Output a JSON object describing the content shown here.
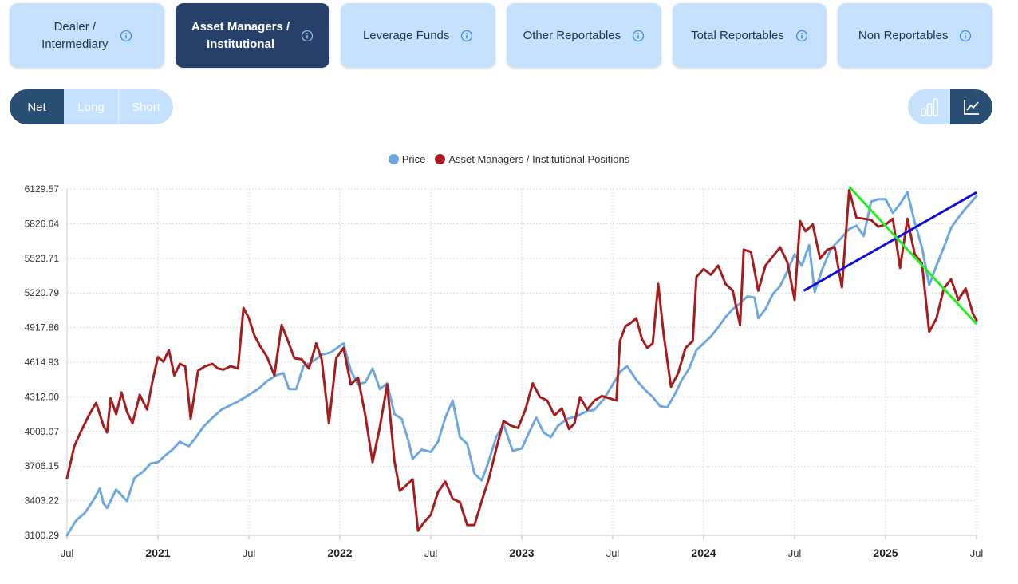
{
  "tabs": [
    {
      "label": "Dealer /\nIntermediary",
      "active": false
    },
    {
      "label": "Asset Managers /\nInstitutional",
      "active": true
    },
    {
      "label": "Leverage Funds",
      "active": false
    },
    {
      "label": "Other Reportables",
      "active": false
    },
    {
      "label": "Total Reportables",
      "active": false
    },
    {
      "label": "Non Reportables",
      "active": false
    }
  ],
  "position_toggle": {
    "net": "Net",
    "long": "Long",
    "short": "Short",
    "selected": "Net"
  },
  "chart_type_toggle": {
    "options": [
      "bar-chart-icon",
      "line-chart-icon"
    ],
    "selected": "line-chart-icon"
  },
  "colors": {
    "price": "#6fa8e0",
    "positions": "#a51d1d",
    "trend_up": "#1010d8",
    "trend_down": "#22ee22",
    "tab_bg": "#c5e1fd",
    "tab_active": "#26406a"
  },
  "chart_data": {
    "type": "line",
    "legend": [
      "Price",
      "Asset Managers / Institutional Positions"
    ],
    "y_ticks": [
      "6129.57",
      "5826.64",
      "5523.71",
      "5220.79",
      "4917.86",
      "4614.93",
      "4312.00",
      "4009.07",
      "3706.15",
      "3403.22",
      "3100.29"
    ],
    "ylim": [
      3100.29,
      6129.57
    ],
    "x_ticks": [
      {
        "label": "Jul",
        "x": 2020.5,
        "bold": false
      },
      {
        "label": "2021",
        "x": 2021.0,
        "bold": true
      },
      {
        "label": "Jul",
        "x": 2021.5,
        "bold": false
      },
      {
        "label": "2022",
        "x": 2022.0,
        "bold": true
      },
      {
        "label": "Jul",
        "x": 2022.5,
        "bold": false
      },
      {
        "label": "2023",
        "x": 2023.0,
        "bold": true
      },
      {
        "label": "Jul",
        "x": 2023.5,
        "bold": false
      },
      {
        "label": "2024",
        "x": 2024.0,
        "bold": true
      },
      {
        "label": "Jul",
        "x": 2024.5,
        "bold": false
      },
      {
        "label": "2025",
        "x": 2025.0,
        "bold": true
      },
      {
        "label": "Jul",
        "x": 2025.5,
        "bold": false
      }
    ],
    "xlim": [
      2020.5,
      2025.5
    ],
    "grid": true,
    "legend_position": "top-center",
    "series": [
      {
        "name": "Price",
        "points": [
          [
            2020.5,
            3100
          ],
          [
            2020.55,
            3230
          ],
          [
            2020.6,
            3300
          ],
          [
            2020.65,
            3420
          ],
          [
            2020.68,
            3510
          ],
          [
            2020.7,
            3380
          ],
          [
            2020.72,
            3340
          ],
          [
            2020.77,
            3500
          ],
          [
            2020.83,
            3400
          ],
          [
            2020.87,
            3600
          ],
          [
            2020.92,
            3660
          ],
          [
            2020.96,
            3730
          ],
          [
            2021.0,
            3740
          ],
          [
            2021.04,
            3800
          ],
          [
            2021.08,
            3850
          ],
          [
            2021.12,
            3920
          ],
          [
            2021.17,
            3880
          ],
          [
            2021.21,
            3960
          ],
          [
            2021.25,
            4050
          ],
          [
            2021.3,
            4130
          ],
          [
            2021.35,
            4200
          ],
          [
            2021.4,
            4240
          ],
          [
            2021.45,
            4280
          ],
          [
            2021.5,
            4330
          ],
          [
            2021.55,
            4380
          ],
          [
            2021.6,
            4450
          ],
          [
            2021.65,
            4500
          ],
          [
            2021.69,
            4520
          ],
          [
            2021.72,
            4380
          ],
          [
            2021.76,
            4380
          ],
          [
            2021.8,
            4580
          ],
          [
            2021.85,
            4620
          ],
          [
            2021.9,
            4680
          ],
          [
            2021.95,
            4700
          ],
          [
            2022.02,
            4780
          ],
          [
            2022.06,
            4540
          ],
          [
            2022.1,
            4420
          ],
          [
            2022.14,
            4440
          ],
          [
            2022.18,
            4560
          ],
          [
            2022.22,
            4380
          ],
          [
            2022.26,
            4430
          ],
          [
            2022.3,
            4160
          ],
          [
            2022.34,
            4120
          ],
          [
            2022.38,
            3910
          ],
          [
            2022.4,
            3770
          ],
          [
            2022.45,
            3850
          ],
          [
            2022.5,
            3830
          ],
          [
            2022.54,
            3920
          ],
          [
            2022.58,
            4130
          ],
          [
            2022.62,
            4280
          ],
          [
            2022.66,
            3960
          ],
          [
            2022.7,
            3900
          ],
          [
            2022.74,
            3640
          ],
          [
            2022.78,
            3580
          ],
          [
            2022.81,
            3710
          ],
          [
            2022.86,
            3960
          ],
          [
            2022.9,
            4070
          ],
          [
            2022.95,
            3840
          ],
          [
            2023.0,
            3860
          ],
          [
            2023.04,
            4000
          ],
          [
            2023.08,
            4130
          ],
          [
            2023.12,
            4000
          ],
          [
            2023.16,
            3960
          ],
          [
            2023.2,
            4060
          ],
          [
            2023.25,
            4120
          ],
          [
            2023.3,
            4140
          ],
          [
            2023.35,
            4180
          ],
          [
            2023.4,
            4200
          ],
          [
            2023.45,
            4290
          ],
          [
            2023.5,
            4420
          ],
          [
            2023.54,
            4530
          ],
          [
            2023.58,
            4580
          ],
          [
            2023.63,
            4460
          ],
          [
            2023.68,
            4370
          ],
          [
            2023.72,
            4310
          ],
          [
            2023.76,
            4230
          ],
          [
            2023.8,
            4220
          ],
          [
            2023.84,
            4330
          ],
          [
            2023.88,
            4460
          ],
          [
            2023.92,
            4560
          ],
          [
            2023.96,
            4720
          ],
          [
            2024.0,
            4780
          ],
          [
            2024.04,
            4840
          ],
          [
            2024.08,
            4920
          ],
          [
            2024.12,
            5010
          ],
          [
            2024.16,
            5080
          ],
          [
            2024.2,
            5130
          ],
          [
            2024.24,
            5190
          ],
          [
            2024.28,
            5180
          ],
          [
            2024.3,
            5000
          ],
          [
            2024.34,
            5080
          ],
          [
            2024.38,
            5210
          ],
          [
            2024.42,
            5280
          ],
          [
            2024.46,
            5410
          ],
          [
            2024.5,
            5560
          ],
          [
            2024.54,
            5460
          ],
          [
            2024.58,
            5640
          ],
          [
            2024.61,
            5230
          ],
          [
            2024.65,
            5420
          ],
          [
            2024.7,
            5610
          ],
          [
            2024.75,
            5690
          ],
          [
            2024.8,
            5780
          ],
          [
            2024.84,
            5810
          ],
          [
            2024.88,
            5720
          ],
          [
            2024.92,
            6020
          ],
          [
            2024.96,
            6040
          ],
          [
            2025.0,
            6040
          ],
          [
            2025.04,
            5920
          ],
          [
            2025.08,
            6000
          ],
          [
            2025.12,
            6100
          ],
          [
            2025.16,
            5840
          ],
          [
            2025.2,
            5620
          ],
          [
            2025.24,
            5290
          ],
          [
            2025.28,
            5460
          ],
          [
            2025.32,
            5620
          ],
          [
            2025.36,
            5790
          ],
          [
            2025.4,
            5880
          ],
          [
            2025.44,
            5960
          ],
          [
            2025.48,
            6030
          ],
          [
            2025.5,
            6070
          ]
        ]
      },
      {
        "name": "Asset Managers / Institutional Positions",
        "points": [
          [
            2020.5,
            3600
          ],
          [
            2020.54,
            3880
          ],
          [
            2020.58,
            4020
          ],
          [
            2020.62,
            4150
          ],
          [
            2020.66,
            4260
          ],
          [
            2020.7,
            4060
          ],
          [
            2020.72,
            4000
          ],
          [
            2020.74,
            4300
          ],
          [
            2020.77,
            4160
          ],
          [
            2020.8,
            4350
          ],
          [
            2020.83,
            4180
          ],
          [
            2020.86,
            4080
          ],
          [
            2020.9,
            4330
          ],
          [
            2020.94,
            4200
          ],
          [
            2020.97,
            4450
          ],
          [
            2021.0,
            4660
          ],
          [
            2021.03,
            4620
          ],
          [
            2021.06,
            4720
          ],
          [
            2021.09,
            4500
          ],
          [
            2021.12,
            4600
          ],
          [
            2021.15,
            4580
          ],
          [
            2021.18,
            4120
          ],
          [
            2021.22,
            4540
          ],
          [
            2021.26,
            4580
          ],
          [
            2021.3,
            4600
          ],
          [
            2021.33,
            4560
          ],
          [
            2021.36,
            4550
          ],
          [
            2021.4,
            4580
          ],
          [
            2021.44,
            4560
          ],
          [
            2021.47,
            5090
          ],
          [
            2021.5,
            5000
          ],
          [
            2021.53,
            4850
          ],
          [
            2021.56,
            4760
          ],
          [
            2021.6,
            4660
          ],
          [
            2021.64,
            4500
          ],
          [
            2021.68,
            4940
          ],
          [
            2021.71,
            4820
          ],
          [
            2021.75,
            4650
          ],
          [
            2021.79,
            4640
          ],
          [
            2021.83,
            4560
          ],
          [
            2021.87,
            4780
          ],
          [
            2021.9,
            4640
          ],
          [
            2021.94,
            4080
          ],
          [
            2021.98,
            4650
          ],
          [
            2022.02,
            4740
          ],
          [
            2022.06,
            4420
          ],
          [
            2022.1,
            4480
          ],
          [
            2022.14,
            4150
          ],
          [
            2022.18,
            3740
          ],
          [
            2022.22,
            4050
          ],
          [
            2022.26,
            4420
          ],
          [
            2022.3,
            3750
          ],
          [
            2022.33,
            3490
          ],
          [
            2022.36,
            3530
          ],
          [
            2022.4,
            3590
          ],
          [
            2022.43,
            3140
          ],
          [
            2022.46,
            3210
          ],
          [
            2022.5,
            3280
          ],
          [
            2022.54,
            3480
          ],
          [
            2022.58,
            3570
          ],
          [
            2022.62,
            3420
          ],
          [
            2022.66,
            3390
          ],
          [
            2022.7,
            3190
          ],
          [
            2022.74,
            3190
          ],
          [
            2022.78,
            3400
          ],
          [
            2022.82,
            3600
          ],
          [
            2022.86,
            3860
          ],
          [
            2022.9,
            4100
          ],
          [
            2022.94,
            4060
          ],
          [
            2022.98,
            4040
          ],
          [
            2023.02,
            4200
          ],
          [
            2023.06,
            4430
          ],
          [
            2023.1,
            4310
          ],
          [
            2023.14,
            4280
          ],
          [
            2023.18,
            4150
          ],
          [
            2023.22,
            4210
          ],
          [
            2023.26,
            4030
          ],
          [
            2023.29,
            4080
          ],
          [
            2023.32,
            4310
          ],
          [
            2023.36,
            4200
          ],
          [
            2023.4,
            4280
          ],
          [
            2023.44,
            4320
          ],
          [
            2023.48,
            4300
          ],
          [
            2023.52,
            4280
          ],
          [
            2023.54,
            4800
          ],
          [
            2023.57,
            4930
          ],
          [
            2023.6,
            4960
          ],
          [
            2023.63,
            5000
          ],
          [
            2023.66,
            4820
          ],
          [
            2023.69,
            4740
          ],
          [
            2023.72,
            4780
          ],
          [
            2023.75,
            5300
          ],
          [
            2023.78,
            4860
          ],
          [
            2023.82,
            4400
          ],
          [
            2023.86,
            4520
          ],
          [
            2023.9,
            4740
          ],
          [
            2023.94,
            4800
          ],
          [
            2023.96,
            5360
          ],
          [
            2024.0,
            5430
          ],
          [
            2024.04,
            5380
          ],
          [
            2024.08,
            5460
          ],
          [
            2024.12,
            5300
          ],
          [
            2024.16,
            5240
          ],
          [
            2024.2,
            4940
          ],
          [
            2024.22,
            5600
          ],
          [
            2024.26,
            5580
          ],
          [
            2024.3,
            5240
          ],
          [
            2024.34,
            5460
          ],
          [
            2024.38,
            5540
          ],
          [
            2024.42,
            5620
          ],
          [
            2024.46,
            5490
          ],
          [
            2024.5,
            5160
          ],
          [
            2024.53,
            5850
          ],
          [
            2024.56,
            5760
          ],
          [
            2024.6,
            5820
          ],
          [
            2024.64,
            5520
          ],
          [
            2024.68,
            5600
          ],
          [
            2024.72,
            5620
          ],
          [
            2024.76,
            5270
          ],
          [
            2024.8,
            6120
          ],
          [
            2024.84,
            5880
          ],
          [
            2024.88,
            5870
          ],
          [
            2024.92,
            5860
          ],
          [
            2024.96,
            5800
          ],
          [
            2025.0,
            5820
          ],
          [
            2025.04,
            5870
          ],
          [
            2025.08,
            5440
          ],
          [
            2025.12,
            5870
          ],
          [
            2025.16,
            5560
          ],
          [
            2025.2,
            5480
          ],
          [
            2025.24,
            4880
          ],
          [
            2025.28,
            5000
          ],
          [
            2025.32,
            5260
          ],
          [
            2025.36,
            5340
          ],
          [
            2025.4,
            5160
          ],
          [
            2025.44,
            5260
          ],
          [
            2025.48,
            5040
          ],
          [
            2025.5,
            4980
          ]
        ]
      }
    ],
    "trendlines": [
      {
        "name": "trend-up",
        "color": "#1010d8",
        "from": [
          2024.55,
          5240
        ],
        "to": [
          2025.5,
          6100
        ]
      },
      {
        "name": "trend-down",
        "color": "#22ee22",
        "from": [
          2024.8,
          6150
        ],
        "to": [
          2025.5,
          4950
        ]
      }
    ]
  }
}
